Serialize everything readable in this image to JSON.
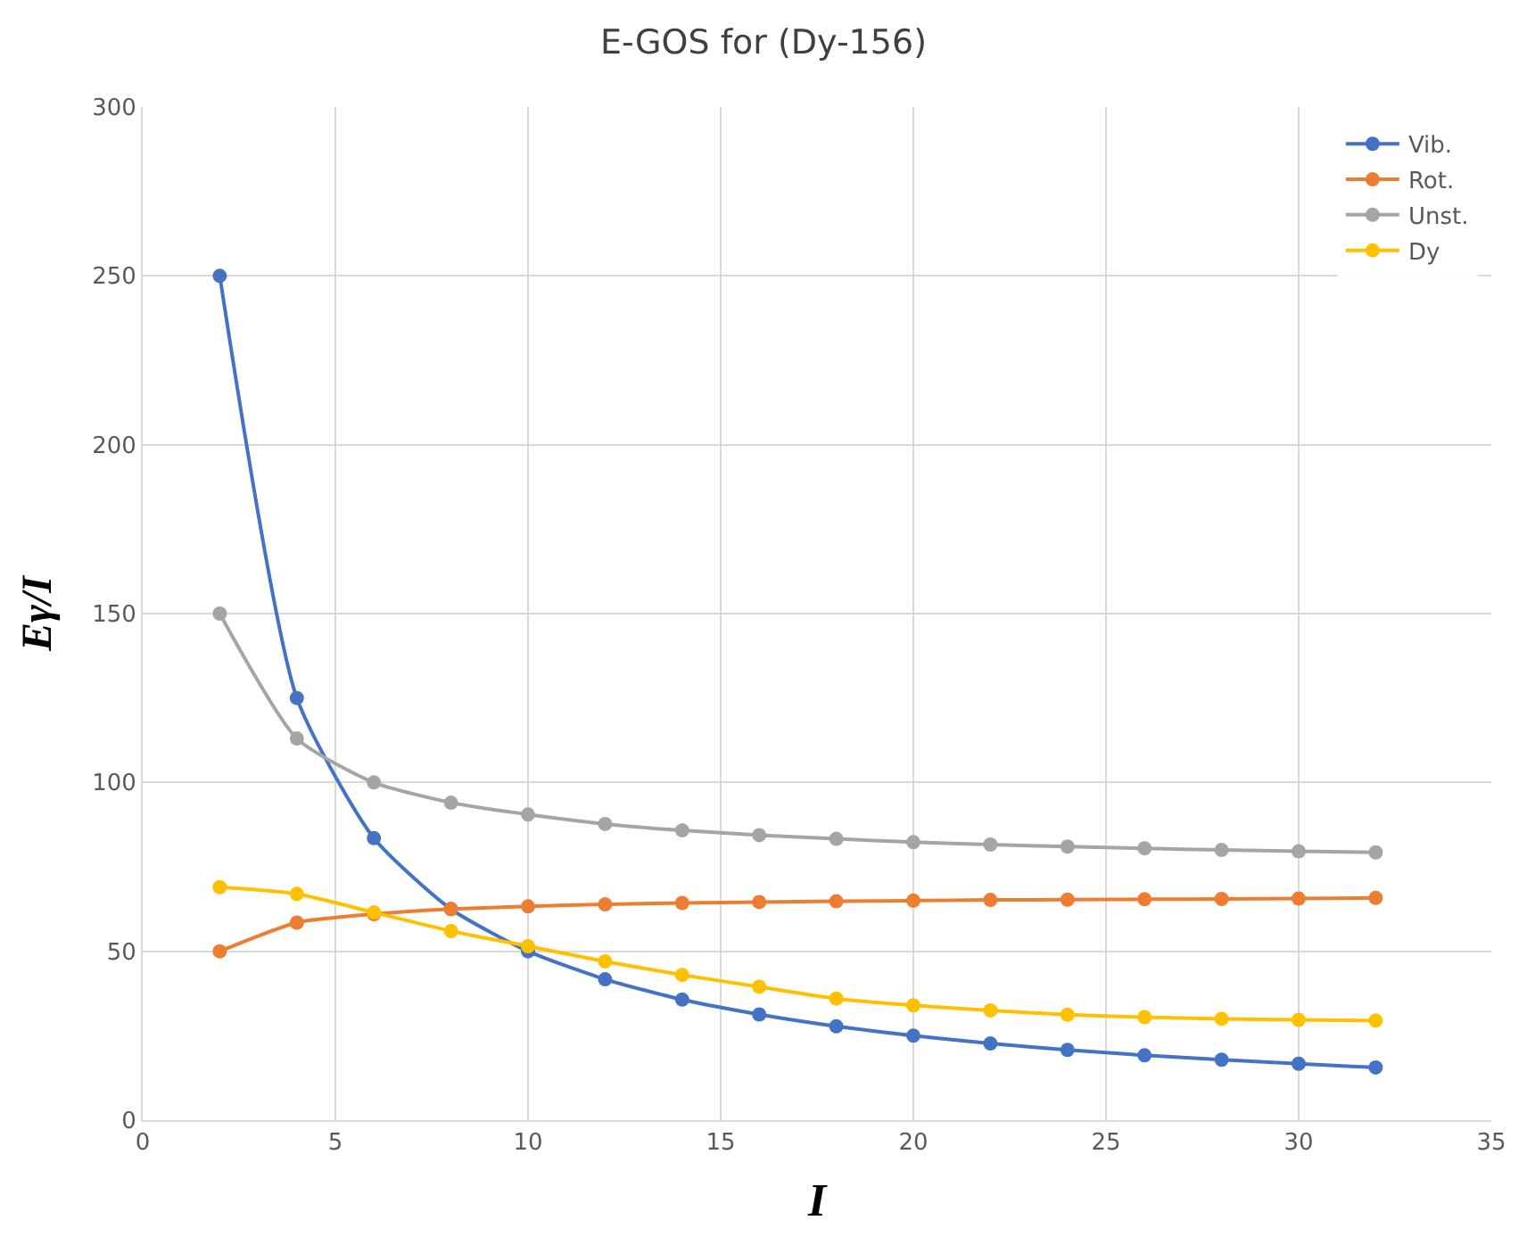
{
  "chart_data": {
    "type": "line",
    "title": "E-GOS for (Dy-156)",
    "xlabel": "I",
    "ylabel": "Eγ/I",
    "x": [
      2,
      4,
      6,
      8,
      10,
      12,
      14,
      16,
      18,
      20,
      22,
      24,
      26,
      28,
      30,
      32
    ],
    "series": [
      {
        "name": "Vib.",
        "color": "#4472c4",
        "values": [
          250,
          125,
          83.5,
          62.5,
          50,
          41.7,
          35.7,
          31.3,
          27.8,
          25,
          22.7,
          20.8,
          19.2,
          17.9,
          16.7,
          15.6
        ]
      },
      {
        "name": "Rot.",
        "color": "#ed7d31",
        "values": [
          50,
          58.5,
          61,
          62.5,
          63.3,
          63.9,
          64.3,
          64.6,
          64.8,
          65,
          65.2,
          65.3,
          65.4,
          65.5,
          65.6,
          65.8
        ]
      },
      {
        "name": "Unst.",
        "color": "#a5a5a5",
        "values": [
          150,
          113,
          100,
          94,
          90.5,
          87.7,
          85.8,
          84.4,
          83.3,
          82.3,
          81.6,
          81,
          80.5,
          80,
          79.6,
          79.3
        ]
      },
      {
        "name": "Dy",
        "color": "#ffc000",
        "values": [
          69,
          67,
          61.5,
          56,
          51.5,
          47,
          43,
          39.5,
          36,
          34,
          32.5,
          31.2,
          30.5,
          30,
          29.7,
          29.5
        ]
      }
    ],
    "xlim": [
      0,
      35
    ],
    "xticks": [
      0,
      5,
      10,
      15,
      20,
      25,
      30,
      35
    ],
    "ylim": [
      0,
      300
    ],
    "yticks": [
      0,
      50,
      100,
      150,
      200,
      250,
      300
    ],
    "grid": true,
    "legend": "top right",
    "marker": "circle",
    "line_style": "solid"
  }
}
